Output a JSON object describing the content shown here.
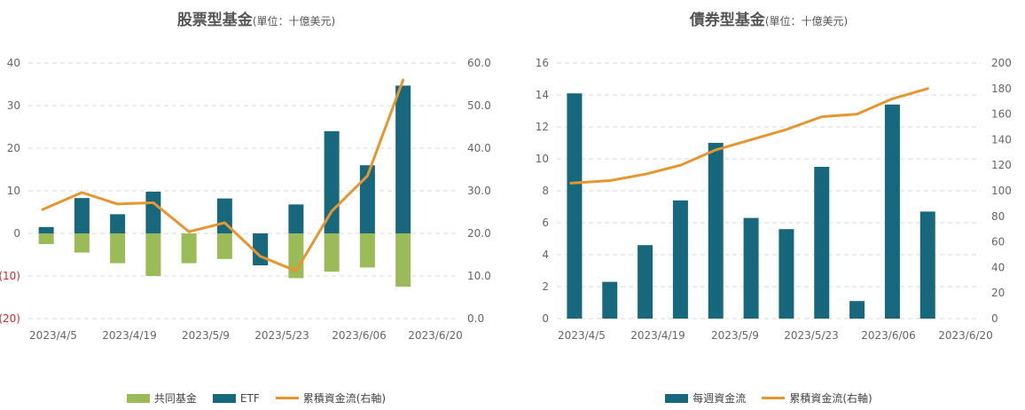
{
  "colors": {
    "fund": "#9bbb59",
    "etf": "#17687d",
    "line": "#e6962f",
    "weekly": "#17687d",
    "grid": "#d9d9d9",
    "neg_tick": "#d62728"
  },
  "chart_data": [
    {
      "id": "equity",
      "type": "bar",
      "title": "股票型基金",
      "title_unit": "(單位：十億美元)",
      "x_tick_labels": [
        "2023/4/5",
        "2023/4/19",
        "2023/5/9",
        "2023/5/23",
        "2023/6/06",
        "2023/6/20"
      ],
      "n_points": 12,
      "left_axis": {
        "ylim": [
          -20,
          40
        ],
        "ticks": [
          40,
          30,
          20,
          10,
          0,
          -10,
          -20
        ],
        "tick_labels": [
          "40",
          "30",
          "20",
          "10",
          "0",
          "(10)",
          "(20)"
        ]
      },
      "right_axis": {
        "ylim": [
          0,
          60
        ],
        "ticks": [
          60,
          50,
          40,
          30,
          20,
          10,
          0
        ],
        "tick_labels": [
          "60.0",
          "50.0",
          "40.0",
          "30.0",
          "20.0",
          "10.0",
          "0.0"
        ]
      },
      "series": [
        {
          "name": "共同基金",
          "kind": "bar",
          "axis": "left",
          "values": [
            -2.5,
            -4.5,
            -7,
            -10,
            -7,
            -6,
            -7,
            -10.5,
            -9,
            -8,
            -12.5,
            null
          ]
        },
        {
          "name": "ETF",
          "kind": "bar",
          "axis": "left",
          "values": [
            1.5,
            8.3,
            4.5,
            9.8,
            null,
            8.2,
            -7.5,
            6.8,
            24,
            16,
            34.7,
            null
          ]
        },
        {
          "name": "累積資金流(右軸)",
          "kind": "line",
          "axis": "right",
          "values": [
            25.6,
            29.6,
            26.9,
            27.2,
            20.4,
            22.5,
            14.6,
            11.2,
            25.2,
            33.5,
            56.0,
            null
          ]
        }
      ],
      "legend": [
        "共同基金",
        "ETF",
        "累積資金流(右軸)"
      ]
    },
    {
      "id": "bond",
      "type": "bar",
      "title": "債券型基金",
      "title_unit": "(單位：十億美元)",
      "x_tick_labels": [
        "2023/4/5",
        "2023/4/19",
        "2023/5/9",
        "2023/5/23",
        "2023/6/06",
        "2023/6/20"
      ],
      "n_points": 12,
      "left_axis": {
        "ylim": [
          0,
          16
        ],
        "ticks": [
          16,
          14,
          12,
          10,
          8,
          6,
          4,
          2,
          0
        ],
        "tick_labels": [
          "16",
          "14",
          "12",
          "10",
          "8",
          "6",
          "4",
          "2",
          "0"
        ]
      },
      "right_axis": {
        "ylim": [
          0,
          200
        ],
        "ticks": [
          200,
          180,
          160,
          140,
          120,
          100,
          80,
          60,
          40,
          20,
          0
        ],
        "tick_labels": [
          "200",
          "180",
          "160",
          "140",
          "120",
          "100",
          "80",
          "60",
          "40",
          "20",
          "0"
        ]
      },
      "series": [
        {
          "name": "每週資金流",
          "kind": "bar",
          "axis": "left",
          "values": [
            14.1,
            2.3,
            4.6,
            7.4,
            11.0,
            6.3,
            5.6,
            9.5,
            1.1,
            13.4,
            6.7,
            null
          ]
        },
        {
          "name": "累積資金流(右軸)",
          "kind": "line",
          "axis": "right",
          "values": [
            106,
            108,
            113,
            120,
            132,
            140,
            148,
            158,
            160,
            172,
            180,
            null
          ]
        }
      ],
      "legend": [
        "每週資金流",
        "累積資金流(右軸)"
      ]
    }
  ]
}
